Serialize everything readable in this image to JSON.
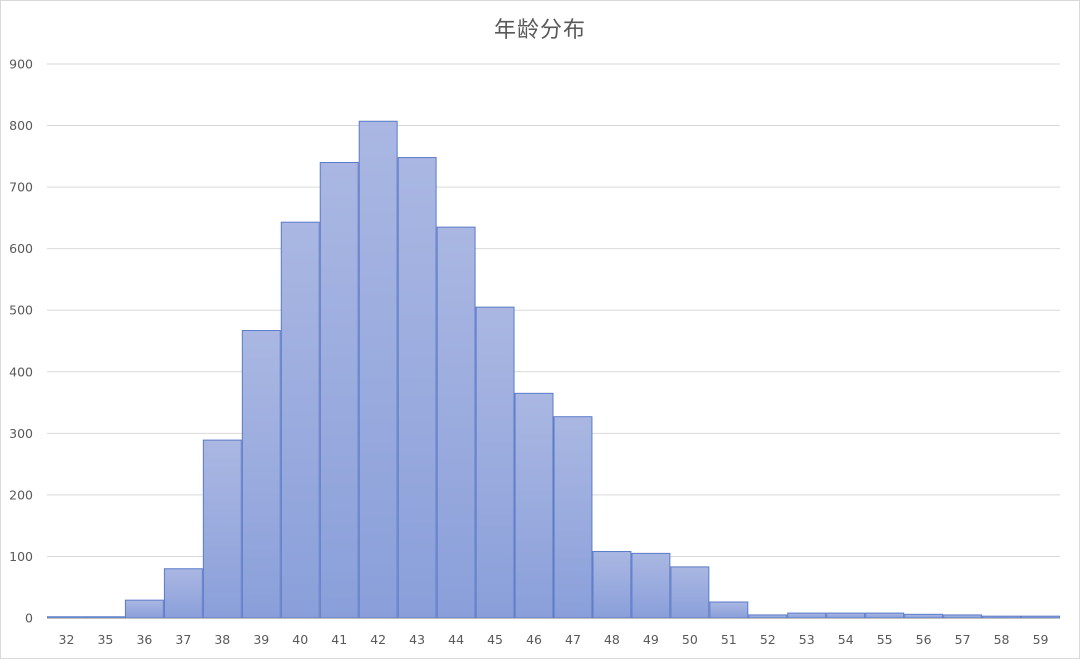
{
  "chart_data": {
    "type": "bar",
    "title": "年龄分布",
    "xlabel": "",
    "ylabel": "",
    "categories": [
      "32",
      "35",
      "36",
      "37",
      "38",
      "39",
      "40",
      "41",
      "42",
      "43",
      "44",
      "45",
      "46",
      "47",
      "48",
      "49",
      "50",
      "51",
      "52",
      "53",
      "54",
      "55",
      "56",
      "57",
      "58",
      "59"
    ],
    "values": [
      2,
      2,
      29,
      80,
      289,
      467,
      643,
      740,
      807,
      748,
      635,
      505,
      365,
      327,
      108,
      105,
      83,
      26,
      5,
      8,
      8,
      8,
      6,
      5,
      3,
      3
    ],
    "ylim": [
      0,
      900
    ],
    "yticks": [
      0,
      100,
      200,
      300,
      400,
      500,
      600,
      700,
      800,
      900
    ],
    "grid": true,
    "legend": "none",
    "colors": {
      "bar_top": "#aab7e2",
      "bar_bottom": "#8a9fda",
      "bar_edge": "#5b7bc8",
      "grid": "#d9d9d9",
      "axis": "#bfbfbf",
      "text": "#595959"
    }
  }
}
